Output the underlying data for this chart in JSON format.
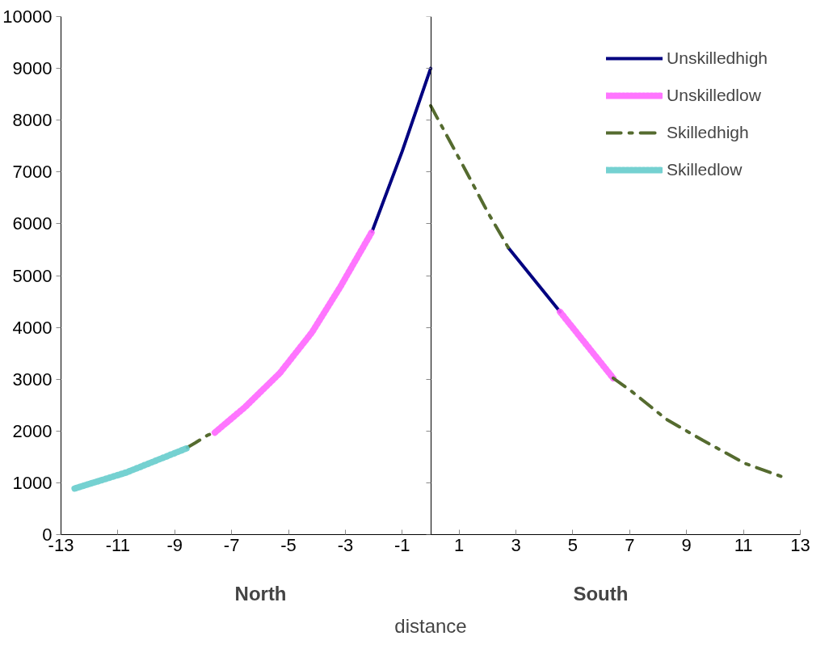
{
  "chart_data": {
    "type": "line",
    "xlabel": "distance",
    "annotations": [
      "North",
      "South"
    ],
    "xlim": [
      -13,
      13
    ],
    "xticks": [
      -13,
      -11,
      -9,
      -7,
      -5,
      -3,
      -1,
      1,
      3,
      5,
      7,
      9,
      11,
      13
    ],
    "ylim": [
      0,
      10000
    ],
    "yticks": [
      0,
      1000,
      2000,
      3000,
      4000,
      5000,
      6000,
      7000,
      8000,
      9000,
      10000
    ],
    "grid": false,
    "legend": "top right",
    "series": [
      {
        "name": "Unskilledhigh",
        "color": "#000080",
        "line_style": "solid",
        "x": [
          -2.06,
          -1,
          0,
          null,
          2.73,
          4.55
        ],
        "values": [
          5850,
          7400,
          9000,
          null,
          5540,
          4300
        ]
      },
      {
        "name": "Unskilledlow",
        "color": "#ff66ff",
        "line_style": "dotted",
        "x": [
          -7.59,
          -6.53,
          -5.3,
          -4.18,
          -3.18,
          -2.06,
          null,
          4.55,
          6.42
        ],
        "values": [
          1970,
          2460,
          3120,
          3900,
          4780,
          5850,
          null,
          4300,
          3020
        ]
      },
      {
        "name": "Skilledhigh",
        "color": "#556b2f",
        "line_style": "dashed",
        "x": [
          -8.56,
          -8.28,
          -7.84,
          -7.59,
          null,
          0,
          1.2,
          2.0,
          2.73,
          null,
          6.42,
          7.08,
          8.28,
          9.57,
          11.07,
          12.5
        ],
        "values": [
          1680,
          1770,
          1920,
          1970,
          null,
          8280,
          7060,
          6230,
          5540,
          null,
          3020,
          2760,
          2230,
          1820,
          1370,
          1090
        ]
      },
      {
        "name": "Skilledlow",
        "color": "#66cccc",
        "line_style": "dotted",
        "x": [
          -12.52,
          -10.7,
          -8.56
        ],
        "values": [
          890,
          1200,
          1670
        ]
      }
    ]
  }
}
